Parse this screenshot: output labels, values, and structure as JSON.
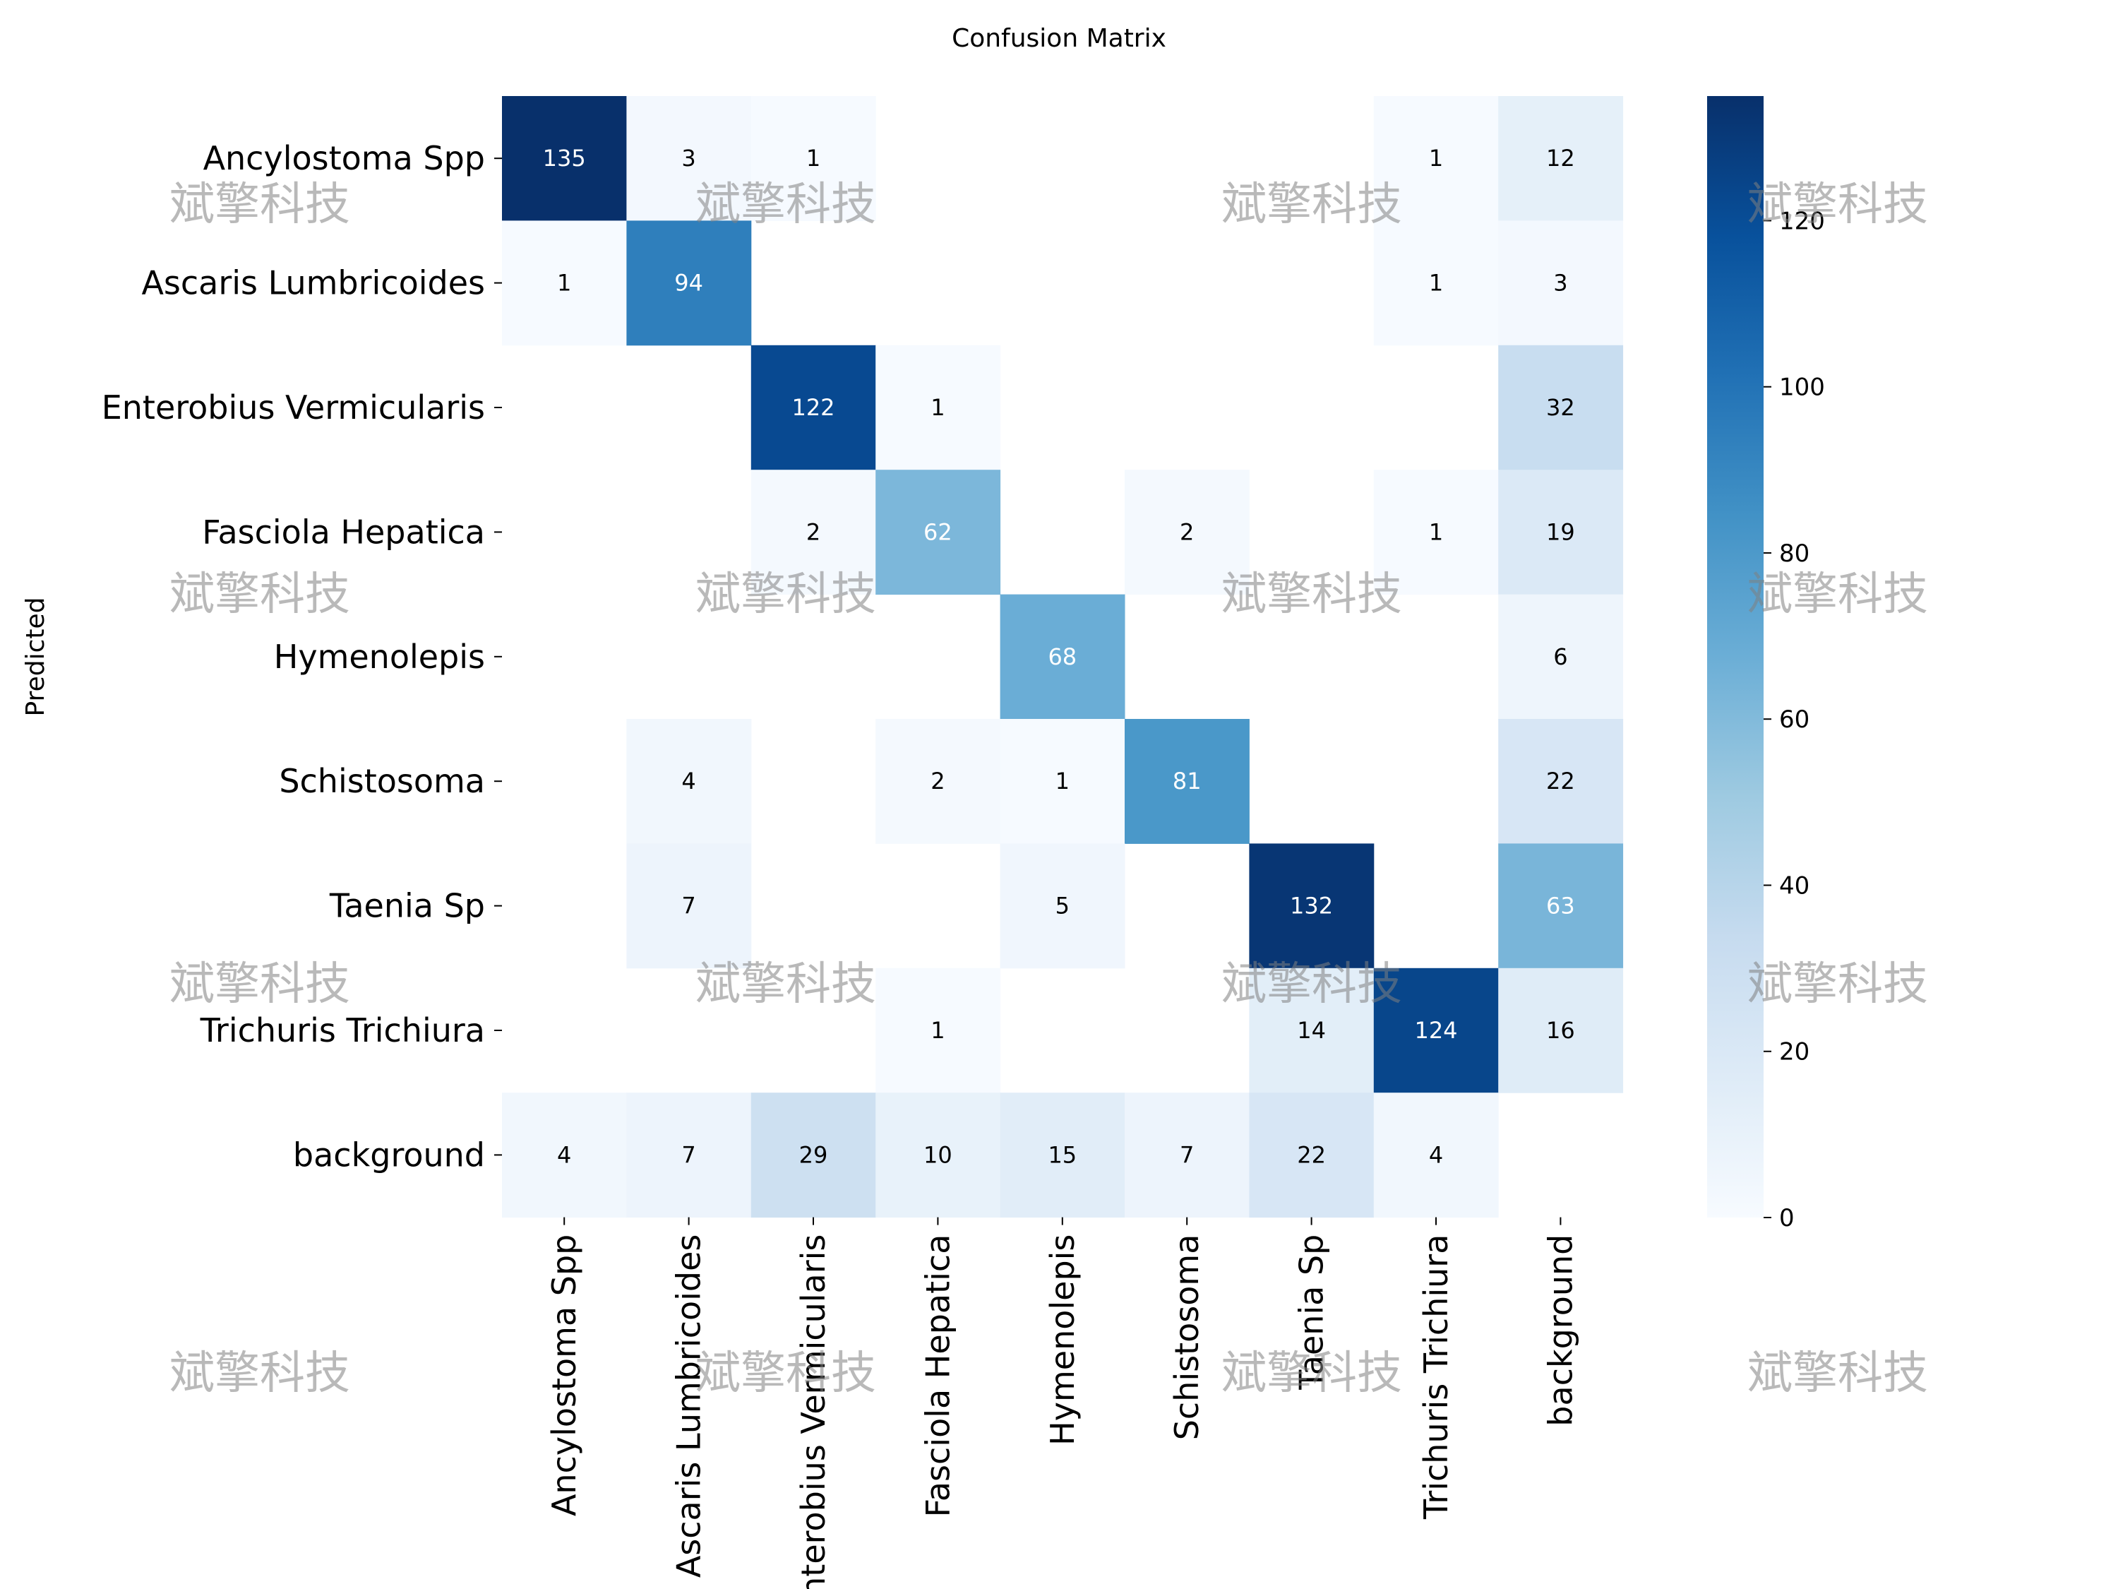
{
  "chart_data": {
    "type": "heatmap",
    "title": "Confusion Matrix",
    "ylabel": "Predicted",
    "xlabel": "",
    "row_labels": [
      "Ancylostoma Spp",
      "Ascaris Lumbricoides",
      "Enterobius Vermicularis",
      "Fasciola Hepatica",
      "Hymenolepis",
      "Schistosoma",
      "Taenia Sp",
      "Trichuris Trichiura",
      "background"
    ],
    "col_labels": [
      "Ancylostoma Spp",
      "Ascaris Lumbricoides",
      "Enterobius Vermicularis",
      "Fasciola Hepatica",
      "Hymenolepis",
      "Schistosoma",
      "Taenia Sp",
      "Trichuris Trichiura",
      "background"
    ],
    "values": [
      [
        135,
        3,
        1,
        0,
        0,
        0,
        0,
        1,
        12
      ],
      [
        1,
        94,
        0,
        0,
        0,
        0,
        0,
        1,
        3
      ],
      [
        0,
        0,
        122,
        1,
        0,
        0,
        0,
        0,
        32
      ],
      [
        0,
        0,
        2,
        62,
        0,
        2,
        0,
        1,
        19
      ],
      [
        0,
        0,
        0,
        0,
        68,
        0,
        0,
        0,
        6
      ],
      [
        0,
        4,
        0,
        2,
        1,
        81,
        0,
        0,
        22
      ],
      [
        0,
        7,
        0,
        0,
        5,
        0,
        132,
        0,
        63
      ],
      [
        0,
        0,
        0,
        1,
        0,
        0,
        14,
        124,
        16
      ],
      [
        4,
        7,
        29,
        10,
        15,
        7,
        22,
        4,
        0
      ]
    ],
    "colorbar": {
      "min": 0,
      "max": 135,
      "ticks": [
        0,
        20,
        40,
        60,
        80,
        100,
        120
      ],
      "colormap": "Blues"
    },
    "zero_cells_hidden": true
  },
  "watermark": {
    "text": "斌擎科技"
  },
  "colors": {
    "low": "#f7fbff",
    "high": "#08306b"
  }
}
